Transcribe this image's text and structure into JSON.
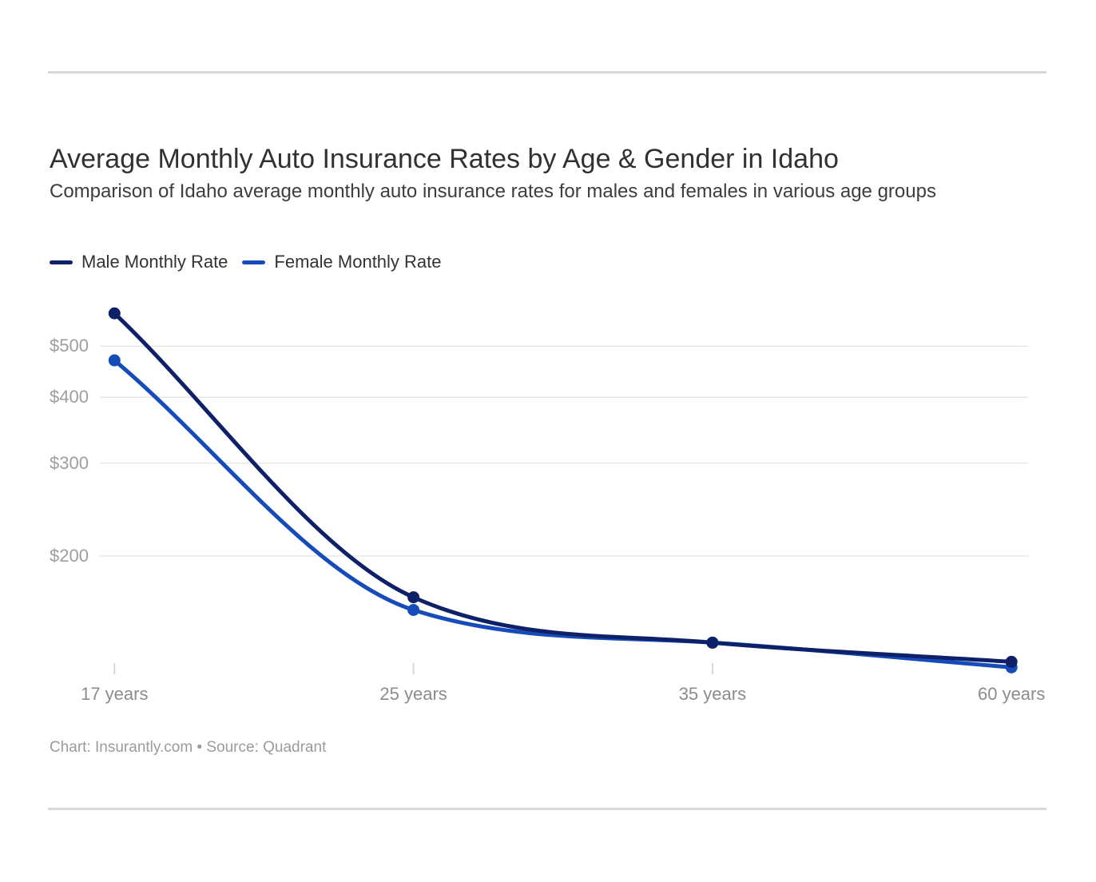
{
  "page": {
    "footer": "Chart: Insurantly.com • Source: Quadrant"
  },
  "chart_data": {
    "type": "line",
    "title": "Average Monthly Auto Insurance Rates by Age & Gender in Idaho",
    "subtitle": "Comparison of Idaho average monthly auto insurance rates for males and females in various age groups",
    "x_categories": [
      "17 years",
      "25 years",
      "35 years",
      "60 years"
    ],
    "series": [
      {
        "name": "Male Monthly Rate",
        "color": "#0d2068",
        "values": [
          577,
          167,
          137,
          126
        ]
      },
      {
        "name": "Female Monthly Rate",
        "color": "#164cba",
        "values": [
          470,
          158,
          137,
          123
        ]
      }
    ],
    "y_axis": {
      "scale": "log",
      "ticks": [
        {
          "label": "$500",
          "value": 500
        },
        {
          "label": "$400",
          "value": 400
        },
        {
          "label": "$300",
          "value": 300
        },
        {
          "label": "$200",
          "value": 200
        }
      ]
    },
    "grid": "horizontal-only",
    "legend_position": "top-left",
    "gridline_color": "#e6e6e6",
    "tick_color": "#d4d4d4"
  }
}
